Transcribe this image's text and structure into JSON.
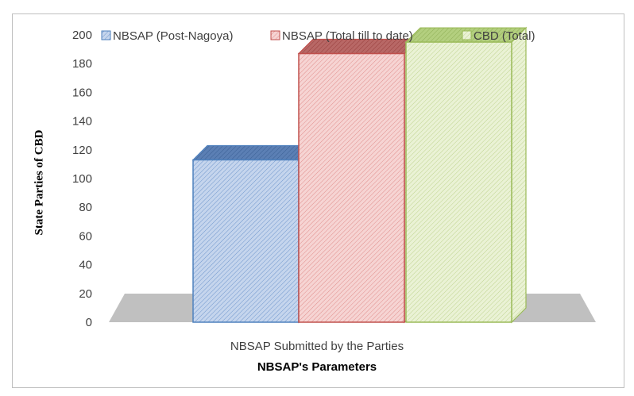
{
  "chart_data": {
    "type": "bar",
    "categories": [
      "NBSAP Submitted  by the Parties"
    ],
    "series": [
      {
        "name": "NBSAP (Post-Nagoya)",
        "values": [
          113
        ],
        "color": "#4f81bd",
        "fill": "#c5d5ed"
      },
      {
        "name": "NBSAP (Total till to date)",
        "values": [
          187
        ],
        "color": "#c0504d",
        "fill": "#f2c7c6"
      },
      {
        "name": "CBD (Total)",
        "values": [
          195
        ],
        "color": "#9bbb59",
        "fill": "#e2edc9"
      }
    ],
    "xlabel": "NBSAP's Parameters",
    "ylabel": "State Parties of CBD",
    "yticks": [
      0,
      20,
      40,
      60,
      80,
      100,
      120,
      140,
      160,
      180,
      200
    ],
    "ylim": [
      0,
      200
    ],
    "legend_position": "top",
    "grid": false,
    "floor_color": "#c0c0c0"
  }
}
